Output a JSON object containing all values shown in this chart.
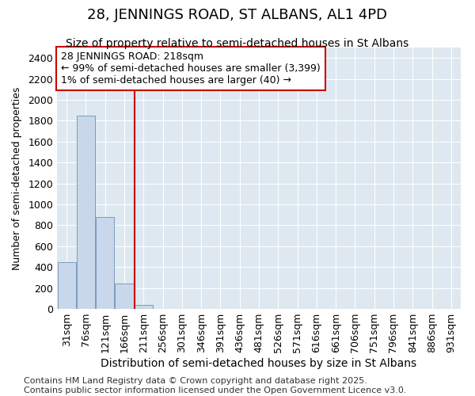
{
  "title1": "28, JENNINGS ROAD, ST ALBANS, AL1 4PD",
  "title2": "Size of property relative to semi-detached houses in St Albans",
  "xlabel": "Distribution of semi-detached houses by size in St Albans",
  "ylabel": "Number of semi-detached properties",
  "categories": [
    "31sqm",
    "76sqm",
    "121sqm",
    "166sqm",
    "211sqm",
    "256sqm",
    "301sqm",
    "346sqm",
    "391sqm",
    "436sqm",
    "481sqm",
    "526sqm",
    "571sqm",
    "616sqm",
    "661sqm",
    "706sqm",
    "751sqm",
    "796sqm",
    "841sqm",
    "886sqm",
    "931sqm"
  ],
  "values": [
    450,
    1850,
    880,
    240,
    40,
    0,
    0,
    0,
    0,
    0,
    0,
    0,
    0,
    0,
    0,
    0,
    0,
    0,
    0,
    0,
    0
  ],
  "bar_color": "#c8d8ea",
  "bar_edge_color": "#7090b8",
  "vline_color": "#cc0000",
  "annotation_text": "28 JENNINGS ROAD: 218sqm\n← 99% of semi-detached houses are smaller (3,399)\n1% of semi-detached houses are larger (40) →",
  "annotation_box_color": "#ffffff",
  "annotation_box_edge": "#cc0000",
  "ylim": [
    0,
    2500
  ],
  "yticks": [
    0,
    200,
    400,
    600,
    800,
    1000,
    1200,
    1400,
    1600,
    1800,
    2000,
    2200,
    2400
  ],
  "bg_color": "#dde8f0",
  "footer": "Contains HM Land Registry data © Crown copyright and database right 2025.\nContains public sector information licensed under the Open Government Licence v3.0.",
  "title1_fontsize": 13,
  "title2_fontsize": 10,
  "xlabel_fontsize": 10,
  "ylabel_fontsize": 9,
  "tick_fontsize": 9,
  "annotation_fontsize": 9,
  "footer_fontsize": 8
}
